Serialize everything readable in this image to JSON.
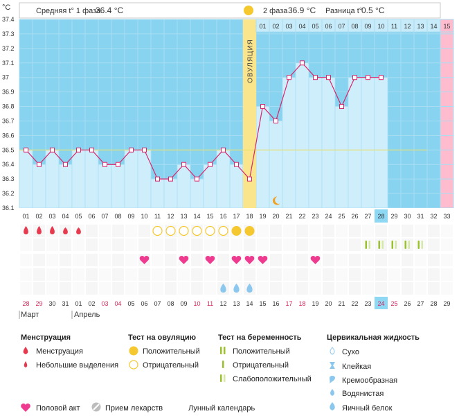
{
  "header": {
    "unit": "°C",
    "phase1_label": "Средняя t° 1 фаза",
    "phase1_value": "36.4 °C",
    "phase2_label": "2 фаза",
    "phase2_value": "36.9 °C",
    "diff_label": "Разница t°",
    "diff_value": "0.5 °C"
  },
  "chart_data": {
    "type": "line",
    "ylabel": "°C",
    "ylim": [
      36.1,
      37.4
    ],
    "y_ticks": [
      "37.4",
      "37.3",
      "37.2",
      "37.1",
      "37",
      "36.9",
      "36.8",
      "36.7",
      "36.6",
      "36.5",
      "36.4",
      "36.3",
      "36.2",
      "36.1"
    ],
    "cycle_days": [
      "01",
      "02",
      "03",
      "04",
      "05",
      "06",
      "07",
      "08",
      "09",
      "10",
      "11",
      "12",
      "13",
      "14",
      "15",
      "16",
      "17",
      "18",
      "19",
      "20",
      "21",
      "22",
      "23",
      "24",
      "25",
      "26",
      "27",
      "28",
      "29",
      "30",
      "31",
      "32",
      "33"
    ],
    "temperatures": [
      36.5,
      36.4,
      36.5,
      36.4,
      36.5,
      36.5,
      36.4,
      36.4,
      36.5,
      36.5,
      36.3,
      36.3,
      36.4,
      36.3,
      36.4,
      36.5,
      36.4,
      36.3,
      36.8,
      36.7,
      37.0,
      37.1,
      37.0,
      37.0,
      36.8,
      37.0,
      37.0,
      37.0
    ],
    "coverline": 36.5,
    "ovulation_day": 18,
    "ovulation_label": "ОВУЛЯЦИЯ",
    "current_day": 28,
    "expected_period_day": 33,
    "luteal_numbers": [
      "01",
      "02",
      "03",
      "04",
      "05",
      "06",
      "07",
      "08",
      "09",
      "10",
      "11",
      "12",
      "13",
      "14",
      "15"
    ],
    "dates": [
      "28",
      "29",
      "30",
      "31",
      "01",
      "02",
      "03",
      "04",
      "05",
      "06",
      "07",
      "08",
      "09",
      "10",
      "11",
      "12",
      "13",
      "14",
      "15",
      "16",
      "17",
      "18",
      "19",
      "20",
      "21",
      "22",
      "23",
      "24",
      "25",
      "26",
      "27",
      "28",
      "29"
    ],
    "weekend_days": [
      1,
      2,
      7,
      8,
      14,
      15,
      21,
      22,
      28,
      29
    ],
    "months": [
      "Март",
      "Апрель"
    ],
    "events": {
      "menstruation": [
        1,
        2,
        3,
        4,
        5
      ],
      "menstruation_small": [
        4,
        5
      ],
      "ovulation_test_negative": [
        11,
        12,
        13,
        14,
        15,
        16
      ],
      "ovulation_test_positive": [
        17,
        18
      ],
      "sex": [
        10,
        13,
        15,
        17,
        18,
        19,
        23
      ],
      "pregnancy_test_weak": [
        27,
        28,
        29,
        30,
        31
      ],
      "cervical_eggwhite": [
        16,
        17,
        18
      ]
    },
    "colors": {
      "sky": "#87d3f0",
      "bar": "#cfeefb",
      "bar_border": "#a9dff4",
      "line": "#d8266b",
      "coverline": "#e8e06a",
      "ovulation_band": "#fbe58c",
      "future_band": "#ffbcce",
      "current_highlight": "#8fd8f3",
      "menstruation": "#e63a4f",
      "heart": "#ee3b8f",
      "ovulation_test": "#f5c830",
      "pregnancy_test": "#9ac22e",
      "water": "#8cc8ee",
      "moon": "#f0a020"
    }
  },
  "legend": {
    "menstruation_title": "Менструация",
    "menstruation_item": "Менструация",
    "spotting_item": "Небольшие выделения",
    "ovtest_title": "Тест на овуляцию",
    "ovtest_positive": "Положительный",
    "ovtest_negative": "Отрицательный",
    "pregtest_title": "Тест на беременность",
    "pregtest_positive": "Положительный",
    "pregtest_negative": "Отрицательный",
    "pregtest_weak": "Слабоположительный",
    "cervical_title": "Цервикальная жидкость",
    "cervical_dry": "Сухо",
    "cervical_sticky": "Клейкая",
    "cervical_creamy": "Кремообразная",
    "cervical_watery": "Водянистая",
    "cervical_eggwhite": "Яичный белок",
    "sex": "Половой акт",
    "meds": "Прием лекарств",
    "moon": "Лунный календарь"
  }
}
